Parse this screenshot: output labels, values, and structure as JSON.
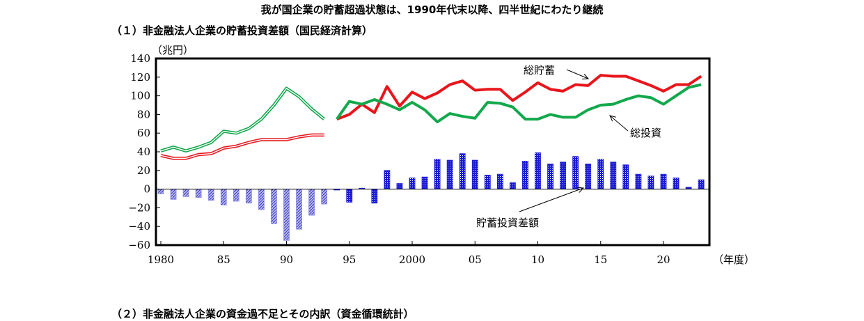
{
  "page": {
    "title": "我が国企業の貯蓄超過状態は、1990年代末以降、四半世紀にわたり継続",
    "section1": "（１）非金融法人企業の貯蓄投資差額（国民経済計算）",
    "section2": "（２）非金融法人企業の資金過不足とその内訳（資金循環統計）"
  },
  "chart_data": {
    "type": "bar",
    "ylabel": "（兆円）",
    "xlabel": "（年度）",
    "ylim": [
      -60,
      140
    ],
    "yticks": [
      "140",
      "120",
      "100",
      "80",
      "60",
      "40",
      "20",
      "0",
      "−20",
      "−40",
      "−60"
    ],
    "xlim": [
      1980,
      2023
    ],
    "xticks": [
      {
        "year": 1980,
        "label": "1980"
      },
      {
        "year": 1985,
        "label": "85"
      },
      {
        "year": 1990,
        "label": "90"
      },
      {
        "year": 1995,
        "label": "95"
      },
      {
        "year": 2000,
        "label": "2000"
      },
      {
        "year": 2005,
        "label": "05"
      },
      {
        "year": 2010,
        "label": "10"
      },
      {
        "year": 2015,
        "label": "15"
      },
      {
        "year": 2020,
        "label": "20"
      }
    ],
    "annotations": {
      "saving": "総貯蓄",
      "investment": "総投資",
      "balance": "貯蓄投資差額"
    },
    "colors": {
      "saving": "#e8151b",
      "investment": "#12a84c",
      "bar_new": "#1a1ad6",
      "bar_old": "#8a8ae6"
    },
    "series": [
      {
        "key": "saving_old",
        "style": "double-line",
        "years": [
          1980,
          1981,
          1982,
          1983,
          1984,
          1985,
          1986,
          1987,
          1988,
          1989,
          1990,
          1991,
          1992,
          1993
        ],
        "values": [
          36,
          33,
          33,
          37,
          38,
          44,
          46,
          50,
          53,
          53,
          53,
          56,
          58,
          58
        ]
      },
      {
        "key": "investment_old",
        "style": "double-line",
        "years": [
          1980,
          1981,
          1982,
          1983,
          1984,
          1985,
          1986,
          1987,
          1988,
          1989,
          1990,
          1991,
          1992,
          1993
        ],
        "values": [
          41,
          45,
          41,
          45,
          50,
          62,
          60,
          65,
          75,
          90,
          108,
          99,
          86,
          75
        ]
      },
      {
        "key": "saving_new",
        "style": "line",
        "years": [
          1994,
          1995,
          1996,
          1997,
          1998,
          1999,
          2000,
          2001,
          2002,
          2003,
          2004,
          2005,
          2006,
          2007,
          2008,
          2009,
          2010,
          2011,
          2012,
          2013,
          2014,
          2015,
          2016,
          2017,
          2018,
          2019,
          2020,
          2021,
          2022,
          2023
        ],
        "values": [
          75,
          80,
          91,
          82,
          110,
          89,
          104,
          97,
          103,
          112,
          116,
          106,
          107,
          107,
          95,
          104,
          114,
          107,
          105,
          112,
          111,
          122,
          121,
          121,
          116,
          111,
          105,
          112,
          112,
          121
        ]
      },
      {
        "key": "investment_new",
        "style": "line",
        "years": [
          1994,
          1995,
          1996,
          1997,
          1998,
          1999,
          2000,
          2001,
          2002,
          2003,
          2004,
          2005,
          2006,
          2007,
          2008,
          2009,
          2010,
          2011,
          2012,
          2013,
          2014,
          2015,
          2016,
          2017,
          2018,
          2019,
          2020,
          2021,
          2022,
          2023
        ],
        "values": [
          75,
          94,
          91,
          96,
          91,
          85,
          93,
          85,
          72,
          81,
          78,
          76,
          93,
          92,
          88,
          75,
          75,
          80,
          77,
          77,
          85,
          90,
          91,
          96,
          100,
          98,
          91,
          100,
          109,
          112
        ]
      },
      {
        "key": "balance_old",
        "style": "bar",
        "years": [
          1980,
          1981,
          1982,
          1983,
          1984,
          1985,
          1986,
          1987,
          1988,
          1989,
          1990,
          1991,
          1992,
          1993
        ],
        "values": [
          -5,
          -11,
          -8,
          -9,
          -12,
          -17,
          -13,
          -15,
          -22,
          -37,
          -55,
          -43,
          -28,
          -16
        ]
      },
      {
        "key": "balance_new",
        "style": "bar",
        "years": [
          1994,
          1995,
          1996,
          1997,
          1998,
          1999,
          2000,
          2001,
          2002,
          2003,
          2004,
          2005,
          2006,
          2007,
          2008,
          2009,
          2010,
          2011,
          2012,
          2013,
          2014,
          2015,
          2016,
          2017,
          2018,
          2019,
          2020,
          2021,
          2022,
          2023
        ],
        "values": [
          -1,
          -14,
          1,
          -15,
          20,
          6,
          12,
          13,
          32,
          31,
          38,
          31,
          15,
          16,
          7,
          30,
          39,
          27,
          29,
          35,
          27,
          32,
          29,
          26,
          16,
          14,
          16,
          12,
          2,
          10
        ]
      }
    ]
  }
}
